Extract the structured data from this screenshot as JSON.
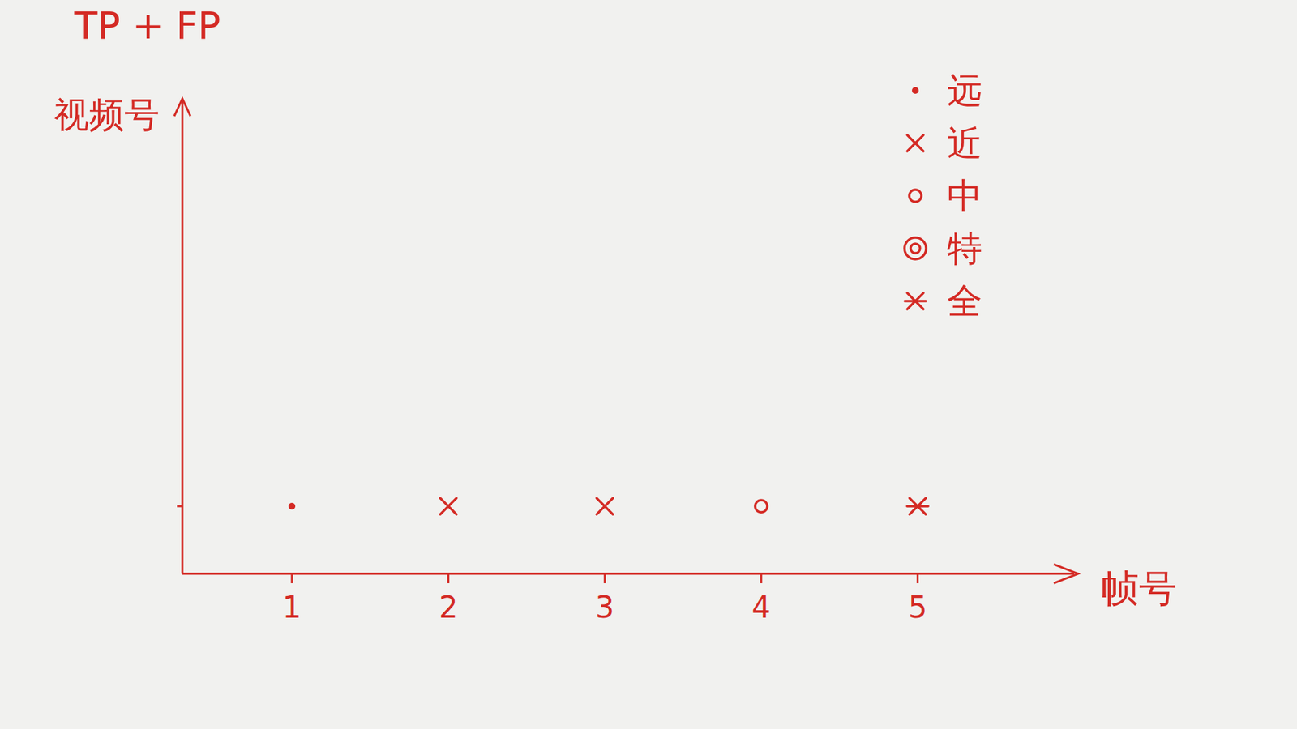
{
  "chart_data": {
    "type": "scatter",
    "title": "TP + FP",
    "x_label": "帧号",
    "y_label": "视频号",
    "xlim": [
      0.3,
      6
    ],
    "xticks": [
      1,
      2,
      3,
      4,
      5
    ],
    "ylim": [
      0,
      7
    ],
    "yticks": [
      1
    ],
    "tick_labels": "x",
    "grid": false,
    "legend": "top-right",
    "color": "#d42a24",
    "series": [
      {
        "name": "远",
        "marker": "dot",
        "x": [
          1
        ],
        "values": [
          1
        ]
      },
      {
        "name": "近",
        "marker": "x",
        "x": [
          2,
          3
        ],
        "values": [
          1,
          1
        ]
      },
      {
        "name": "中",
        "marker": "circle",
        "x": [
          4
        ],
        "values": [
          1
        ]
      },
      {
        "name": "特",
        "marker": "double_circle",
        "x": [],
        "values": []
      },
      {
        "name": "全",
        "marker": "asterisk",
        "x": [
          5
        ],
        "values": [
          1
        ]
      }
    ]
  }
}
